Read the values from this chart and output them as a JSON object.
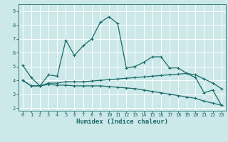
{
  "xlabel": "Humidex (Indice chaleur)",
  "xlim": [
    -0.5,
    23.5
  ],
  "ylim": [
    1.8,
    9.5
  ],
  "xticks": [
    0,
    1,
    2,
    3,
    4,
    5,
    6,
    7,
    8,
    9,
    10,
    11,
    12,
    13,
    14,
    15,
    16,
    17,
    18,
    19,
    20,
    21,
    22,
    23
  ],
  "yticks": [
    2,
    3,
    4,
    5,
    6,
    7,
    8,
    9
  ],
  "bg_color": "#cce8e8",
  "line_color": "#1a6b6b",
  "grid_color": "#ffffff",
  "line1_x": [
    0,
    1,
    2,
    3,
    4,
    5,
    6,
    7,
    8,
    9,
    10,
    11,
    12,
    13,
    14,
    15,
    16,
    17,
    18,
    19,
    20,
    21,
    22,
    23
  ],
  "line1_y": [
    5.1,
    4.2,
    3.6,
    4.4,
    4.3,
    6.9,
    5.8,
    6.5,
    7.0,
    8.2,
    8.6,
    8.1,
    4.9,
    5.0,
    5.3,
    5.7,
    5.7,
    4.9,
    4.9,
    4.5,
    4.2,
    3.1,
    3.3,
    2.2
  ],
  "line2_x": [
    0,
    1,
    2,
    3,
    4,
    5,
    6,
    7,
    8,
    9,
    10,
    11,
    12,
    13,
    14,
    15,
    16,
    17,
    18,
    19,
    20,
    21,
    22,
    23
  ],
  "line2_y": [
    4.0,
    3.6,
    3.6,
    3.8,
    3.8,
    3.9,
    3.9,
    3.9,
    3.95,
    4.0,
    4.05,
    4.1,
    4.15,
    4.2,
    4.25,
    4.3,
    4.35,
    4.4,
    4.45,
    4.5,
    4.4,
    4.1,
    3.8,
    3.4
  ],
  "line3_x": [
    0,
    1,
    2,
    3,
    4,
    5,
    6,
    7,
    8,
    9,
    10,
    11,
    12,
    13,
    14,
    15,
    16,
    17,
    18,
    19,
    20,
    21,
    22,
    23
  ],
  "line3_y": [
    4.0,
    3.6,
    3.6,
    3.7,
    3.65,
    3.65,
    3.6,
    3.6,
    3.6,
    3.6,
    3.55,
    3.5,
    3.45,
    3.4,
    3.3,
    3.2,
    3.1,
    3.0,
    2.9,
    2.8,
    2.7,
    2.5,
    2.35,
    2.2
  ]
}
